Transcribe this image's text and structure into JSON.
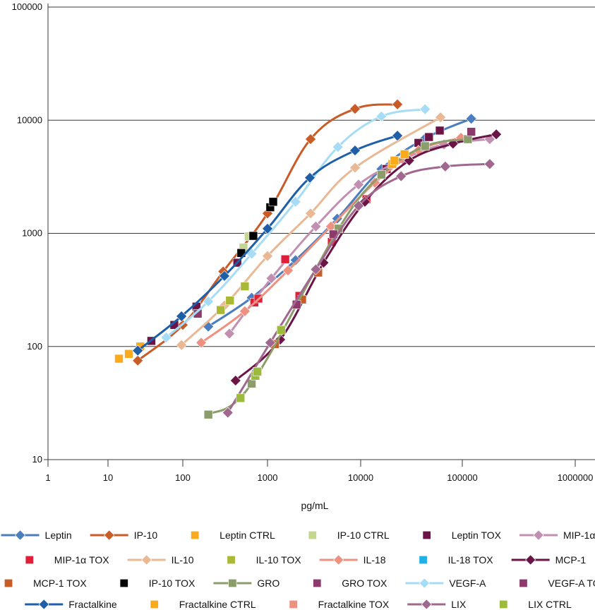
{
  "chart_data": {
    "type": "scatter-line",
    "title": "",
    "xlabel": "pg/mL",
    "ylabel": "",
    "xscale": "log",
    "yscale": "log",
    "xlim": [
      1,
      1000000
    ],
    "ylim": [
      10,
      100000
    ],
    "x_ticks": [
      "1",
      "10",
      "100",
      "1000",
      "10000",
      "100000",
      "1000000"
    ],
    "y_ticks": [
      "10",
      "100",
      "1000",
      "10000",
      "100000"
    ],
    "grid": "horizontal major gridlines",
    "legend_position": "bottom",
    "series": [
      {
        "name": "Leptin",
        "color": "#4a7ebf",
        "marker": "diamond",
        "line": true,
        "points": [
          [
            200,
            150
          ],
          [
            650,
            270
          ],
          [
            2000,
            580
          ],
          [
            5600,
            1350
          ],
          [
            16000,
            3700
          ],
          [
            43000,
            6900
          ],
          [
            120000,
            10300
          ]
        ]
      },
      {
        "name": "IP-10",
        "color": "#c95b27",
        "marker": "diamond",
        "line": true,
        "points": [
          [
            25,
            75
          ],
          [
            100,
            155
          ],
          [
            300,
            460
          ],
          [
            1000,
            1500
          ],
          [
            2900,
            6800
          ],
          [
            8700,
            12600
          ],
          [
            23000,
            13800
          ]
        ]
      },
      {
        "name": "Leptin CTRL",
        "color": "#f9ab1c",
        "marker": "square",
        "line": false,
        "points": [
          [
            14,
            78
          ],
          [
            19,
            86
          ],
          [
            27,
            100
          ]
        ]
      },
      {
        "name": "IP-10 CTRL",
        "color": "#c5d68f",
        "marker": "square",
        "line": false,
        "points": [
          [
            490,
            680
          ],
          [
            520,
            750
          ],
          [
            600,
            940
          ]
        ]
      },
      {
        "name": "Leptin TOX",
        "color": "#6d1446",
        "marker": "square",
        "line": false,
        "points": [
          [
            38,
            112
          ],
          [
            77,
            155
          ],
          [
            145,
            225
          ],
          [
            440,
            550
          ],
          [
            18000,
            3700
          ],
          [
            37000,
            6300
          ],
          [
            47000,
            7100
          ],
          [
            60000,
            8100
          ]
        ]
      },
      {
        "name": "MIP-1α",
        "color": "#c190b0",
        "marker": "diamond",
        "line": true,
        "points": [
          [
            355,
            130
          ],
          [
            1100,
            400
          ],
          [
            3300,
            1150
          ],
          [
            9500,
            2700
          ],
          [
            26000,
            4500
          ],
          [
            66000,
            6100
          ],
          [
            175000,
            6800
          ]
        ]
      },
      {
        "name": "MIP-1α TOX",
        "color": "#e0203a",
        "marker": "square",
        "line": false,
        "points": [
          [
            700,
            245
          ],
          [
            780,
            265
          ],
          [
            1550,
            590
          ],
          [
            2200,
            280
          ],
          [
            4900,
            840
          ],
          [
            11400,
            2000
          ]
        ]
      },
      {
        "name": "IL-10",
        "color": "#e9b995",
        "marker": "diamond",
        "line": true,
        "points": [
          [
            96,
            103
          ],
          [
            310,
            230
          ],
          [
            1000,
            630
          ],
          [
            2900,
            1500
          ],
          [
            8700,
            3800
          ],
          [
            61000,
            10600
          ]
        ]
      },
      {
        "name": "IL-10 TOX",
        "color": "#a9b934",
        "marker": "square",
        "line": false,
        "points": [
          [
            280,
            210
          ],
          [
            360,
            255
          ],
          [
            540,
            340
          ]
        ]
      },
      {
        "name": "IL-18",
        "color": "#ed9280",
        "marker": "diamond",
        "line": true,
        "points": [
          [
            165,
            108
          ],
          [
            540,
            205
          ],
          [
            1660,
            470
          ],
          [
            4800,
            1150
          ],
          [
            13800,
            2800
          ],
          [
            37000,
            5400
          ],
          [
            97000,
            7000
          ]
        ]
      },
      {
        "name": "IL-18 TOX",
        "color": "#1fb0e8",
        "marker": "square",
        "line": false,
        "points": []
      },
      {
        "name": "MCP-1",
        "color": "#6b1446",
        "marker": "diamond",
        "line": true,
        "points": [
          [
            420,
            50
          ],
          [
            1370,
            115
          ],
          [
            4000,
            550
          ],
          [
            11000,
            1900
          ],
          [
            30000,
            4400
          ],
          [
            81000,
            6200
          ],
          [
            200000,
            7500
          ]
        ]
      },
      {
        "name": "MCP-1 TOX",
        "color": "#c95b27",
        "marker": "square",
        "line": false,
        "points": [
          [
            1200,
            105
          ],
          [
            2350,
            260
          ],
          [
            3500,
            450
          ]
        ]
      },
      {
        "name": "IP-10 TOX",
        "color": "#000000",
        "marker": "square",
        "line": false,
        "points": [
          [
            490,
            670
          ],
          [
            680,
            950
          ],
          [
            1070,
            1700
          ],
          [
            1150,
            1900
          ]
        ]
      },
      {
        "name": "GRO",
        "color": "#8c9d6b",
        "marker": "square",
        "line": true,
        "points": [
          [
            200,
            25
          ],
          [
            650,
            47
          ],
          [
            5800,
            1100
          ],
          [
            16000,
            3300
          ],
          [
            43000,
            5900
          ],
          [
            112000,
            6800
          ]
        ]
      },
      {
        "name": "GRO TOX",
        "color": "#8b3a6b",
        "marker": "square",
        "line": false,
        "points": [
          [
            150,
            195
          ],
          [
            2050,
            235
          ],
          [
            5100,
            980
          ]
        ]
      },
      {
        "name": "VEGF-A",
        "color": "#a6dcf5",
        "marker": "diamond",
        "line": true,
        "points": [
          [
            60,
            120
          ],
          [
            200,
            250
          ],
          [
            650,
            660
          ],
          [
            2000,
            1900
          ],
          [
            5700,
            5800
          ],
          [
            16000,
            10800
          ],
          [
            43000,
            12500
          ]
        ]
      },
      {
        "name": "VEGF-A TOX",
        "color": "#8b3a6b",
        "marker": "square",
        "line": false,
        "points": [
          [
            120000,
            7900
          ]
        ]
      },
      {
        "name": "Fractalkine",
        "color": "#1f5fa8",
        "marker": "diamond",
        "line": true,
        "points": [
          [
            25,
            92
          ],
          [
            96,
            185
          ],
          [
            310,
            420
          ],
          [
            1000,
            1100
          ],
          [
            2850,
            3100
          ],
          [
            8700,
            5400
          ],
          [
            23000,
            7300
          ]
        ]
      },
      {
        "name": "Fractalkine CTRL",
        "color": "#f9ab1c",
        "marker": "square",
        "line": false,
        "points": [
          [
            20500,
            4100
          ],
          [
            21500,
            4400
          ],
          [
            27000,
            5000
          ]
        ]
      },
      {
        "name": "Fractalkine TOX",
        "color": "#ed9280",
        "marker": "square",
        "line": false,
        "points": []
      },
      {
        "name": "LIX",
        "color": "#a0688f",
        "marker": "diamond",
        "line": true,
        "points": [
          [
            340,
            26
          ],
          [
            1070,
            108
          ],
          [
            3300,
            480
          ],
          [
            9500,
            1750
          ],
          [
            25000,
            3200
          ],
          [
            68000,
            3900
          ],
          [
            175000,
            4100
          ]
        ]
      },
      {
        "name": "LIX CTRL",
        "color": "#9cbb3b",
        "marker": "square",
        "line": false,
        "points": [
          [
            480,
            35
          ],
          [
            720,
            55
          ],
          [
            760,
            60
          ],
          [
            1400,
            140
          ]
        ]
      }
    ]
  }
}
